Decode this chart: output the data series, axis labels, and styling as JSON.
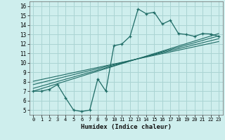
{
  "xlabel": "Humidex (Indice chaleur)",
  "bg_color": "#ceeeed",
  "grid_color": "#aad4d3",
  "line_color": "#1e6b65",
  "xlim": [
    -0.5,
    23.5
  ],
  "ylim": [
    4.5,
    16.5
  ],
  "xticks": [
    0,
    1,
    2,
    3,
    4,
    5,
    6,
    7,
    8,
    9,
    10,
    11,
    12,
    13,
    14,
    15,
    16,
    17,
    18,
    19,
    20,
    21,
    22,
    23
  ],
  "yticks": [
    5,
    6,
    7,
    8,
    9,
    10,
    11,
    12,
    13,
    14,
    15,
    16
  ],
  "main_x": [
    0,
    1,
    2,
    3,
    4,
    5,
    6,
    7,
    8,
    9,
    10,
    11,
    12,
    13,
    14,
    15,
    16,
    17,
    18,
    19,
    20,
    21,
    22,
    23
  ],
  "main_y": [
    7.0,
    7.0,
    7.2,
    7.7,
    6.3,
    5.0,
    4.85,
    5.0,
    8.3,
    7.0,
    11.8,
    12.0,
    12.8,
    15.7,
    15.2,
    15.35,
    14.1,
    14.5,
    13.1,
    13.0,
    12.8,
    13.1,
    13.05,
    12.8
  ],
  "trends": [
    [
      7.0,
      13.1
    ],
    [
      7.3,
      12.85
    ],
    [
      7.7,
      12.55
    ],
    [
      8.05,
      12.25
    ]
  ]
}
